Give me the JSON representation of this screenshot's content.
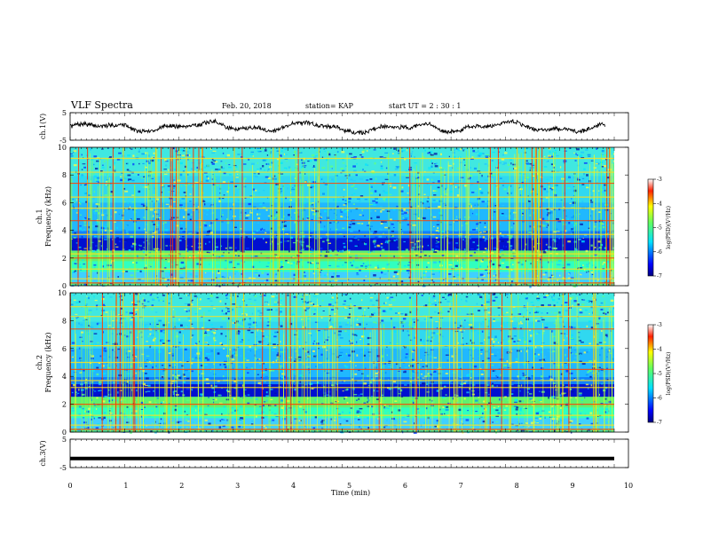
{
  "header": {
    "title": "VLF Spectra",
    "date": "Feb. 20, 2018",
    "station": "station= KAP",
    "start_time": "start  UT =  2 : 30 : 1"
  },
  "chart_data": [
    {
      "type": "line",
      "panel": "ch1-waveform",
      "ylabel": "ch.1(V)",
      "ylim": [
        -5,
        5
      ],
      "ytick_labels": [
        "5",
        "-5"
      ],
      "xlim": [
        0,
        10
      ],
      "trace_seed": 7,
      "trace_center": 0,
      "trace_amplitude": 2
    },
    {
      "type": "heatmap",
      "panel": "ch1-spectrogram",
      "ylabel": "ch.1\nFrequency (kHz)",
      "ylim": [
        0,
        10
      ],
      "ytick_labels": [
        "0",
        "2",
        "4",
        "6",
        "8",
        "10"
      ],
      "xlim": [
        0,
        10
      ],
      "colorbar": {
        "label": "log(PSD)(V²/Hz)",
        "range": [
          -7,
          -3
        ],
        "tick_labels": [
          "-7",
          "-6",
          "-5",
          "-4",
          "-3"
        ]
      },
      "horizontal_lines_khz": [
        0.2,
        0.5,
        1.2,
        2.0,
        2.3,
        3.7,
        4.7,
        5.6,
        6.4,
        7.4,
        8.2,
        9.2
      ]
    },
    {
      "type": "heatmap",
      "panel": "ch2-spectrogram",
      "ylabel": "ch.2\nFrequency (kHz)",
      "ylim": [
        0,
        10
      ],
      "ytick_labels": [
        "0",
        "2",
        "4",
        "6",
        "8",
        "10"
      ],
      "xlim": [
        0,
        10
      ],
      "colorbar": {
        "label": "log(PSD)(V²/Hz)",
        "range": [
          -7,
          -3
        ],
        "tick_labels": [
          "-7",
          "-6",
          "-5",
          "-4",
          "-3"
        ]
      },
      "horizontal_lines_khz": [
        0.2,
        0.5,
        1.2,
        2.0,
        3.2,
        3.7,
        4.5,
        5.0,
        6.2,
        7.4,
        8.3,
        9.0
      ]
    },
    {
      "type": "line",
      "panel": "ch3-waveform",
      "ylabel": "ch.3(V)",
      "ylim": [
        -5,
        5
      ],
      "ytick_labels": [
        "5",
        "-5"
      ],
      "xlim": [
        0,
        10
      ],
      "trace_center": -1.8,
      "xlabel": "Time  (min)",
      "xtick_labels": [
        "0",
        "1",
        "2",
        "3",
        "4",
        "5",
        "6",
        "7",
        "8",
        "9",
        "10"
      ]
    }
  ]
}
